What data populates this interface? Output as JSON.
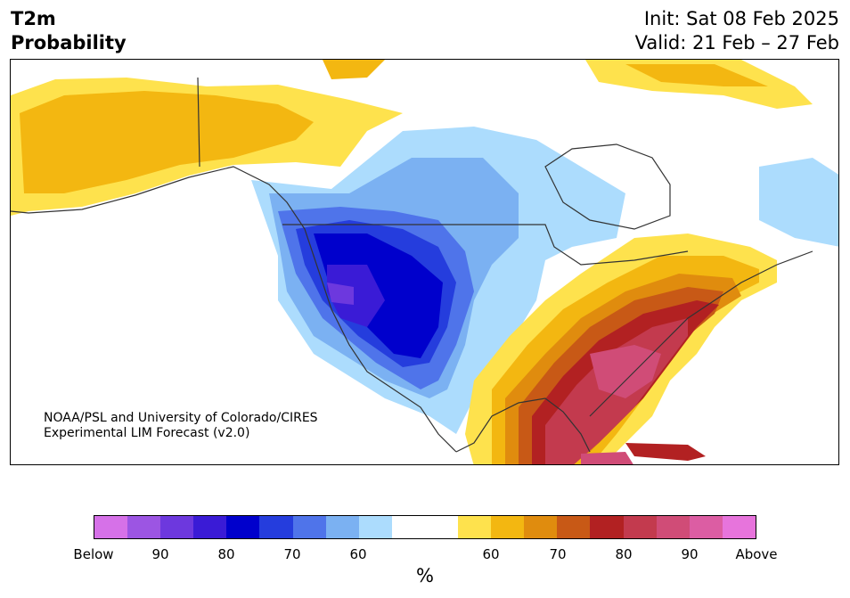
{
  "header": {
    "title": "T2m\nProbability",
    "init": "Init: Sat 08 Feb 2025",
    "valid": "Valid: 21 Feb – 27 Feb"
  },
  "credit": {
    "line1": "NOAA/PSL and University of Colorado/CIRES",
    "line2": "Experimental LIM Forecast (v2.0)"
  },
  "colorbar": {
    "unit": "%",
    "colors": [
      "#d671e8",
      "#9c55e3",
      "#6d38de",
      "#3a1bd6",
      "#0000cc",
      "#253ddd",
      "#4f74ea",
      "#7bb1f2",
      "#acdcfd",
      "#ffffff",
      "#ffffff",
      "#fee24d",
      "#f3b711",
      "#e08c0e",
      "#c85916",
      "#b22122",
      "#c33a4e",
      "#d04c77",
      "#dc5da3",
      "#e774dc"
    ],
    "ticks": [
      "Below",
      "90",
      "80",
      "70",
      "60",
      "60",
      "70",
      "80",
      "90",
      "Above"
    ]
  },
  "map_colors": {
    "below_60": "#acdcfd",
    "below_65": "#7bb1f2",
    "below_70": "#4f74ea",
    "below_75": "#253ddd",
    "below_80": "#0000cc",
    "below_85": "#3a1bd6",
    "below_90": "#6d38de",
    "above_60": "#fee24d",
    "above_65": "#f3b711",
    "above_70": "#e08c0e",
    "above_75": "#c85916",
    "above_80": "#b22122",
    "above_85": "#c33a4e",
    "above_90": "#d04c77",
    "coast": "#333333"
  }
}
